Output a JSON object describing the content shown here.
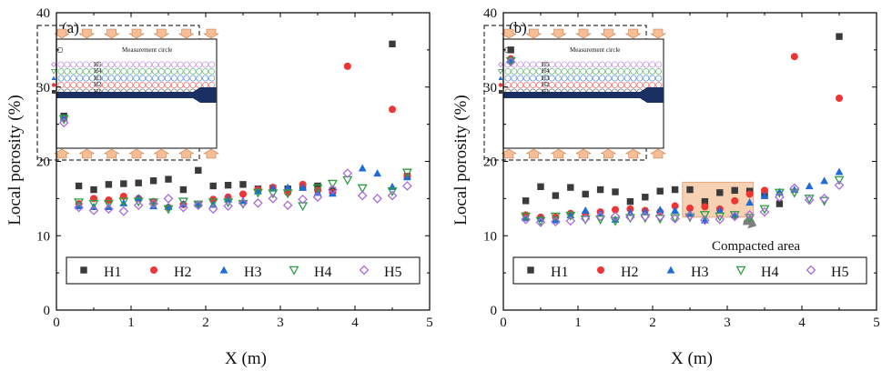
{
  "colors": {
    "H1": "#3a3a3a",
    "H2": "#ef3434",
    "H3": "#1f6cd8",
    "H4": "#2e9e42",
    "H5": "#a86bd8",
    "box_fill": "#f6c9a6",
    "box_stroke": "#e39a66",
    "rod": "#1a3063",
    "arrow_fill": "#f7bd95",
    "arrow_stroke": "#c57b4a",
    "compact_arrow": "#7f7f7f"
  },
  "chart_data": [
    {
      "type": "scatter",
      "panel_label": "(a)",
      "xlabel": "X (m)",
      "ylabel": "Local porosity (%)",
      "xlim": [
        0,
        5
      ],
      "ylim": [
        0,
        40
      ],
      "xticks": [
        "0",
        "1",
        "2",
        "3",
        "4",
        "5"
      ],
      "yticks": [
        "0",
        "10",
        "20",
        "30",
        "40"
      ],
      "legend_position": "bottom",
      "inset": {
        "legend_text": "Measurement circle",
        "rows": [
          "H5",
          "H4",
          "H3",
          "H2",
          "H1"
        ]
      },
      "series": [
        {
          "name": "H1",
          "marker": "square",
          "x": [
            0.1,
            0.3,
            0.5,
            0.7,
            0.9,
            1.1,
            1.3,
            1.5,
            1.7,
            1.9,
            2.1,
            2.3,
            2.5,
            2.7,
            2.9,
            3.1,
            3.3,
            3.5,
            3.7,
            4.5,
            4.7
          ],
          "y": [
            26.1,
            16.7,
            16.2,
            16.9,
            17.0,
            17.1,
            17.4,
            17.6,
            16.2,
            18.8,
            16.7,
            16.8,
            16.9,
            16.3,
            16.4,
            16.3,
            16.5,
            16.7,
            16.1,
            35.8,
            18.0
          ]
        },
        {
          "name": "H2",
          "marker": "circle",
          "x": [
            0.1,
            0.3,
            0.5,
            0.7,
            0.9,
            1.1,
            1.3,
            1.5,
            1.7,
            1.9,
            2.1,
            2.3,
            2.5,
            2.7,
            2.9,
            3.1,
            3.3,
            3.5,
            3.7,
            3.9,
            4.5,
            4.7
          ],
          "y": [
            25.8,
            14.3,
            15.0,
            14.8,
            15.3,
            15.0,
            14.6,
            13.8,
            14.2,
            14.2,
            14.9,
            15.2,
            15.6,
            16.2,
            16.5,
            15.8,
            16.9,
            16.1,
            15.8,
            32.8,
            27.0,
            18.0
          ]
        },
        {
          "name": "H3",
          "marker": "triangle-up",
          "x": [
            0.1,
            0.3,
            0.5,
            0.7,
            0.9,
            1.1,
            1.3,
            1.5,
            1.7,
            1.9,
            2.1,
            2.3,
            2.5,
            2.7,
            2.9,
            3.1,
            3.3,
            3.5,
            3.7,
            4.1,
            4.3,
            4.5,
            4.7
          ],
          "y": [
            25.9,
            14.0,
            13.9,
            13.9,
            14.4,
            15.1,
            14.0,
            13.9,
            14.3,
            14.3,
            14.2,
            14.9,
            14.7,
            16.0,
            16.4,
            16.5,
            16.5,
            15.8,
            15.7,
            19.1,
            18.4,
            16.6,
            17.9
          ]
        },
        {
          "name": "H4",
          "marker": "triangle-down",
          "x": [
            0.1,
            0.3,
            0.5,
            0.7,
            0.9,
            1.1,
            1.3,
            1.5,
            1.7,
            1.9,
            2.1,
            2.3,
            2.5,
            2.7,
            2.9,
            3.1,
            3.3,
            3.5,
            3.7,
            3.9,
            4.1,
            4.5,
            4.7
          ],
          "y": [
            25.7,
            14.5,
            14.3,
            14.3,
            14.6,
            14.6,
            14.5,
            13.6,
            14.6,
            14.2,
            14.5,
            14.5,
            14.3,
            15.8,
            15.7,
            15.7,
            14.0,
            16.4,
            17.0,
            17.5,
            16.4,
            16.0,
            18.5
          ]
        },
        {
          "name": "H5",
          "marker": "diamond",
          "x": [
            0.1,
            0.3,
            0.5,
            0.7,
            0.9,
            1.1,
            1.3,
            1.5,
            1.7,
            1.9,
            2.1,
            2.3,
            2.5,
            2.7,
            2.9,
            3.1,
            3.3,
            3.5,
            3.7,
            3.9,
            4.1,
            4.3,
            4.5,
            4.7
          ],
          "y": [
            25.2,
            13.8,
            13.4,
            13.6,
            13.3,
            14.1,
            14.3,
            15.0,
            13.8,
            14.1,
            13.6,
            14.0,
            14.4,
            14.4,
            15.0,
            14.1,
            14.9,
            15.2,
            16.2,
            18.4,
            15.4,
            15.0,
            15.4,
            16.7
          ]
        }
      ]
    },
    {
      "type": "scatter",
      "panel_label": "(b)",
      "xlabel": "X (m)",
      "ylabel": "Local porosity (%)",
      "xlim": [
        0,
        5
      ],
      "ylim": [
        0,
        40
      ],
      "xticks": [
        "0",
        "1",
        "2",
        "3",
        "4",
        "5"
      ],
      "yticks": [
        "0",
        "10",
        "20",
        "30",
        "40"
      ],
      "legend_position": "bottom",
      "inset": {
        "legend_text": "Measurement circle",
        "rows": [
          "H5",
          "H4",
          "H3",
          "H2",
          "H1"
        ]
      },
      "annotation": {
        "text": "Compacted area",
        "region_x": [
          2.4,
          3.35
        ],
        "region_y": [
          12.5,
          17.2
        ]
      },
      "series": [
        {
          "name": "H1",
          "marker": "square",
          "x": [
            0.1,
            0.3,
            0.5,
            0.7,
            0.9,
            1.1,
            1.3,
            1.5,
            1.7,
            1.9,
            2.1,
            2.3,
            2.5,
            2.7,
            2.9,
            3.1,
            3.3,
            3.5,
            3.7,
            4.5
          ],
          "y": [
            35.0,
            14.7,
            16.6,
            15.4,
            16.5,
            15.6,
            16.2,
            15.9,
            14.6,
            15.2,
            16.0,
            16.2,
            16.2,
            14.6,
            15.8,
            16.1,
            16.0,
            15.4,
            14.3,
            36.8
          ]
        },
        {
          "name": "H2",
          "marker": "circle",
          "x": [
            0.1,
            0.3,
            0.5,
            0.7,
            0.9,
            1.1,
            1.3,
            1.5,
            1.7,
            1.9,
            2.1,
            2.3,
            2.5,
            2.7,
            2.9,
            3.1,
            3.3,
            3.5,
            3.9,
            4.5
          ],
          "y": [
            33.8,
            12.8,
            12.5,
            12.5,
            13.0,
            13.0,
            13.2,
            13.5,
            13.6,
            13.4,
            13.2,
            14.0,
            13.7,
            13.9,
            13.6,
            14.7,
            15.6,
            16.1,
            34.1,
            28.5
          ]
        },
        {
          "name": "H3",
          "marker": "triangle-up",
          "x": [
            0.1,
            0.3,
            0.5,
            0.7,
            0.9,
            1.1,
            1.3,
            1.5,
            1.7,
            1.9,
            2.1,
            2.3,
            2.5,
            2.7,
            2.9,
            3.1,
            3.3,
            3.5,
            3.7,
            3.9,
            4.1,
            4.3,
            4.5
          ],
          "y": [
            33.6,
            12.4,
            12.3,
            12.1,
            12.8,
            13.4,
            13.0,
            12.2,
            13.1,
            13.2,
            13.5,
            13.4,
            13.0,
            12.1,
            13.4,
            12.8,
            14.5,
            15.4,
            15.9,
            16.2,
            16.7,
            17.4,
            18.6
          ]
        },
        {
          "name": "H4",
          "marker": "triangle-down",
          "x": [
            0.1,
            0.3,
            0.5,
            0.7,
            0.9,
            1.1,
            1.3,
            1.5,
            1.7,
            1.9,
            2.1,
            2.3,
            2.5,
            2.7,
            2.9,
            3.1,
            3.3,
            3.5,
            3.7,
            3.9,
            4.1,
            4.3,
            4.5
          ],
          "y": [
            33.5,
            12.6,
            12.0,
            12.6,
            12.7,
            12.2,
            12.2,
            12.0,
            12.4,
            12.4,
            12.3,
            12.4,
            12.5,
            12.8,
            12.6,
            12.8,
            12.4,
            13.6,
            15.8,
            15.8,
            15.0,
            14.7,
            17.5
          ]
        },
        {
          "name": "H5",
          "marker": "diamond",
          "x": [
            0.1,
            0.3,
            0.5,
            0.7,
            0.9,
            1.1,
            1.3,
            1.5,
            1.7,
            1.9,
            2.1,
            2.3,
            2.5,
            2.7,
            2.9,
            3.1,
            3.3,
            3.5,
            3.7,
            3.9,
            4.1,
            4.3,
            4.5
          ],
          "y": [
            33.4,
            12.2,
            11.8,
            11.9,
            12.0,
            12.3,
            12.6,
            12.6,
            12.5,
            12.6,
            12.6,
            12.3,
            12.7,
            12.1,
            12.2,
            12.6,
            12.8,
            13.2,
            15.2,
            16.4,
            14.8,
            15.0,
            16.8
          ]
        }
      ]
    }
  ]
}
